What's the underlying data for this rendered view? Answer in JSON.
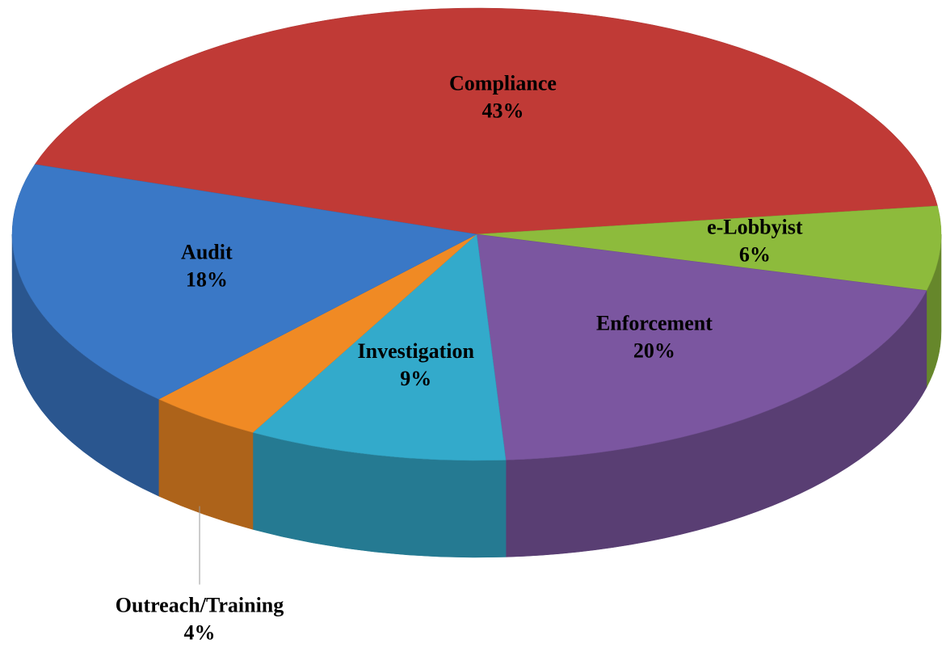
{
  "chart_data": {
    "type": "pie",
    "categories": [
      "Compliance",
      "e-Lobbyist",
      "Enforcement",
      "Investigation",
      "Outreach/Training",
      "Audit"
    ],
    "values": [
      43,
      6,
      20,
      9,
      4,
      18
    ],
    "value_labels": [
      "43%",
      "6%",
      "20%",
      "9%",
      "4%",
      "18%"
    ],
    "colors": [
      "#c03a36",
      "#8dbb3c",
      "#7b56a0",
      "#33aacb",
      "#f08a24",
      "#3a78c6"
    ]
  }
}
